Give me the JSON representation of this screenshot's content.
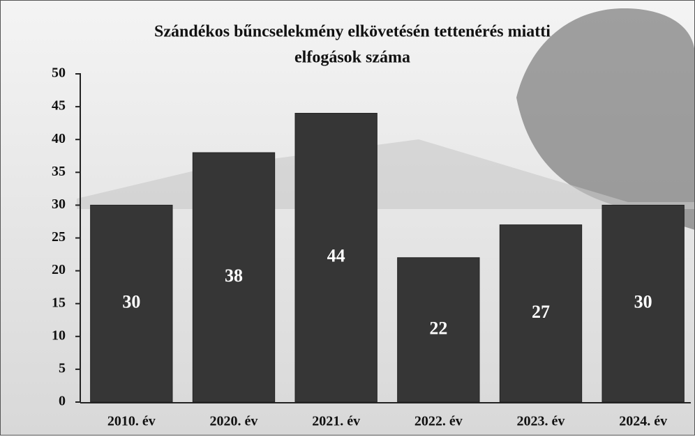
{
  "chart_data": {
    "type": "bar",
    "title": [
      "Szándékos bűncselekmény elkövetésén tettenérés miatti",
      "elfogások száma"
    ],
    "categories": [
      "2010. év",
      "2020. év",
      "2021. év",
      "2022. év",
      "2023. év",
      "2024. év"
    ],
    "values": [
      30,
      38,
      44,
      22,
      27,
      30
    ],
    "color": "#363636",
    "ylim": [
      0,
      50
    ],
    "yticks": [
      0,
      5,
      10,
      15,
      20,
      25,
      30,
      35,
      40,
      45,
      50
    ]
  }
}
